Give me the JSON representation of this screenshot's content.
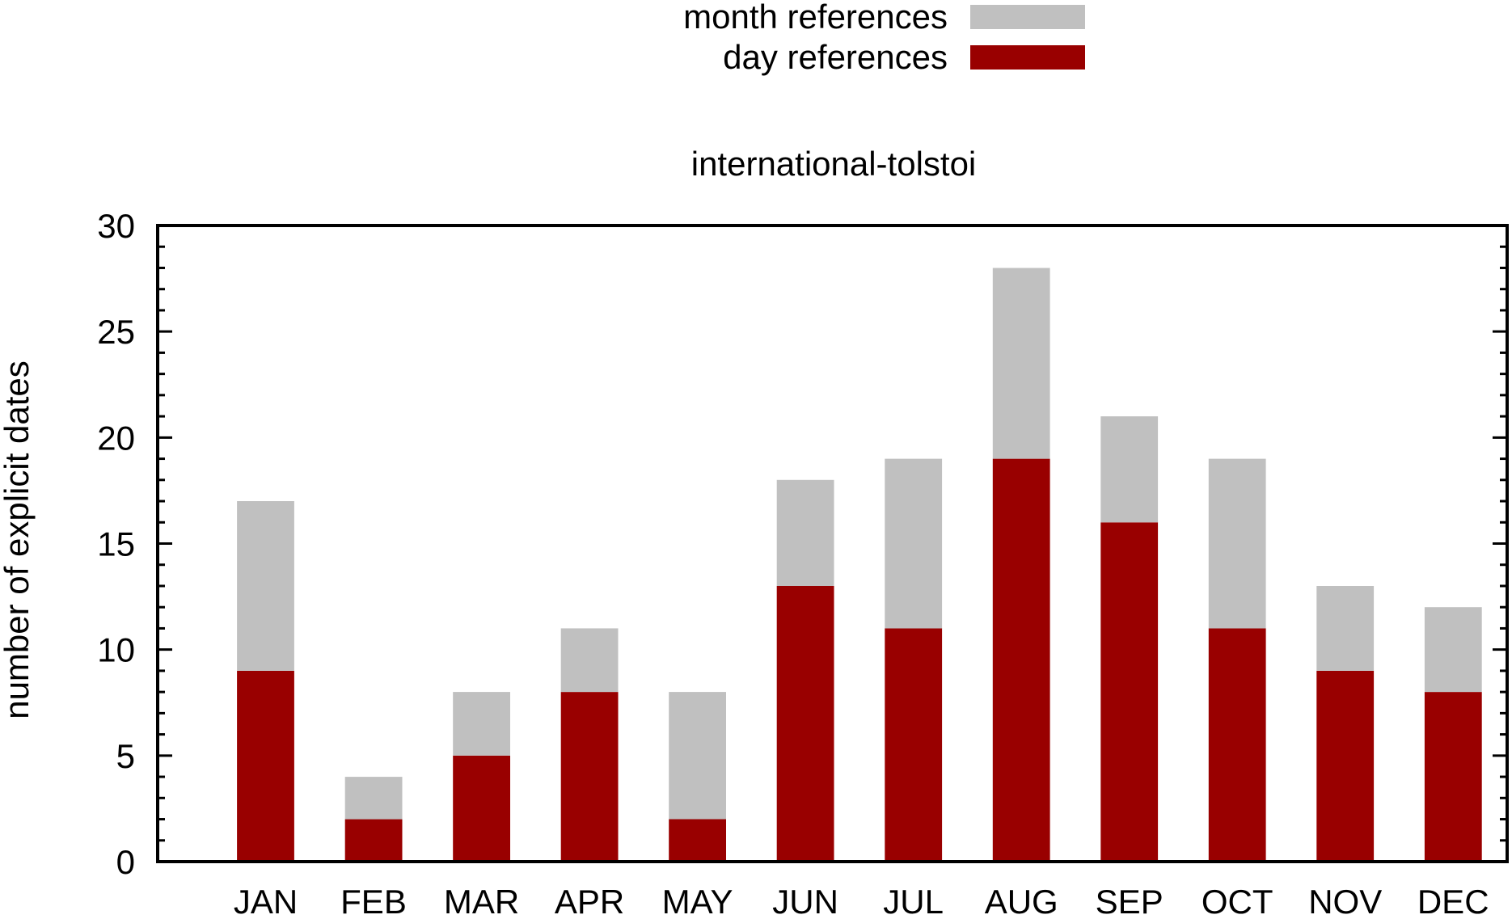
{
  "chart_data": {
    "type": "bar",
    "stacked": true,
    "title": "international-tolstoi",
    "xlabel": "",
    "ylabel": "number of explicit dates",
    "ylim": [
      0,
      30
    ],
    "yticks": [
      0,
      5,
      10,
      15,
      20,
      25,
      30
    ],
    "categories": [
      "JAN",
      "FEB",
      "MAR",
      "APR",
      "MAY",
      "JUN",
      "JUL",
      "AUG",
      "SEP",
      "OCT",
      "NOV",
      "DEC"
    ],
    "series": [
      {
        "name": "day references",
        "color": "#990000",
        "values": [
          9,
          2,
          5,
          8,
          2,
          13,
          11,
          19,
          16,
          11,
          9,
          8
        ]
      },
      {
        "name": "month references",
        "color": "#c0c0c0",
        "values": [
          8,
          2,
          3,
          3,
          6,
          5,
          8,
          9,
          5,
          8,
          4,
          4
        ]
      }
    ],
    "legend": {
      "placement": "top-center",
      "order": [
        "month references",
        "day references"
      ]
    },
    "grid": false
  }
}
